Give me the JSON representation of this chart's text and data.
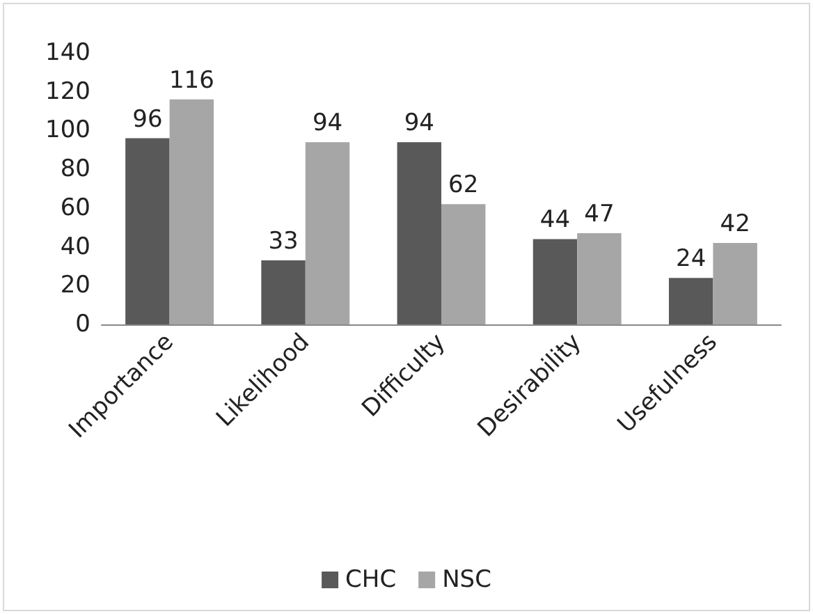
{
  "chart_data": {
    "type": "bar",
    "categories": [
      "Importance",
      "Likelihood",
      "Difficulty",
      "Desirability",
      "Usefulness"
    ],
    "series": [
      {
        "name": "CHC",
        "color": "#595959",
        "values": [
          96,
          33,
          94,
          44,
          24
        ]
      },
      {
        "name": "NSC",
        "color": "#a6a6a6",
        "values": [
          116,
          94,
          62,
          47,
          42
        ]
      }
    ],
    "ylim": [
      0,
      140
    ],
    "yticks": [
      0,
      20,
      40,
      60,
      80,
      100,
      120,
      140
    ],
    "grid": false,
    "legend": "bottom",
    "data_labels": true
  }
}
